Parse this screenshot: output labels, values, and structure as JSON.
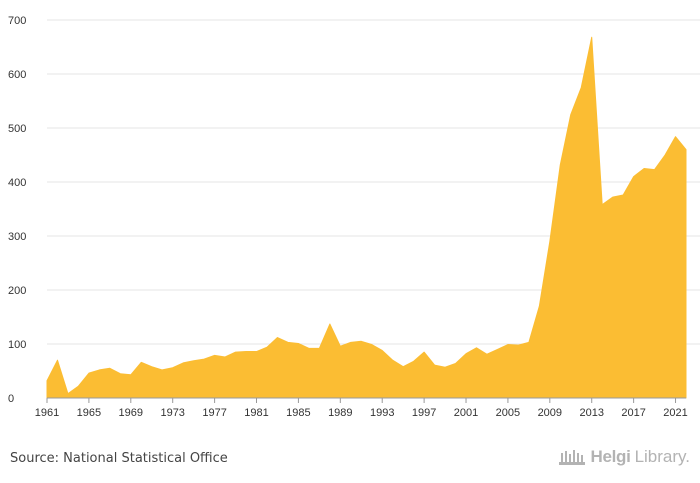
{
  "chart_data": {
    "type": "area",
    "title": "",
    "xlabel": "",
    "ylabel": "",
    "ylim": [
      0,
      700
    ],
    "yticks": [
      0,
      100,
      200,
      300,
      400,
      500,
      600,
      700
    ],
    "xtick_labels": [
      "1961",
      "1965",
      "1969",
      "1973",
      "1977",
      "1981",
      "1985",
      "1989",
      "1993",
      "1997",
      "2001",
      "2005",
      "2009",
      "2013",
      "2017",
      "2021"
    ],
    "grid": "horizontal",
    "color": "#fbbd33",
    "series": [
      {
        "x": [
          1961,
          1962,
          1963,
          1964,
          1965,
          1966,
          1967,
          1968,
          1969,
          1970,
          1971,
          1972,
          1973,
          1974,
          1975,
          1976,
          1977,
          1978,
          1979,
          1980,
          1981,
          1982,
          1983,
          1984,
          1985,
          1986,
          1987,
          1988,
          1989,
          1990,
          1991,
          1992,
          1993,
          1994,
          1995,
          1996,
          1997,
          1998,
          1999,
          2000,
          2001,
          2002,
          2003,
          2004,
          2005,
          2006,
          2007,
          2008,
          2009,
          2010,
          2011,
          2012,
          2013,
          2014,
          2015,
          2016,
          2017,
          2018,
          2019,
          2020,
          2021,
          2022
        ],
        "values": [
          32,
          70,
          8,
          22,
          46,
          52,
          55,
          45,
          43,
          66,
          58,
          52,
          56,
          65,
          69,
          72,
          79,
          76,
          85,
          86,
          86,
          94,
          112,
          103,
          101,
          92,
          92,
          137,
          96,
          103,
          105,
          99,
          88,
          70,
          58,
          68,
          85,
          61,
          57,
          64,
          82,
          93,
          81,
          90,
          99,
          98,
          103,
          170,
          290,
          432,
          525,
          575,
          668,
          358,
          372,
          376,
          410,
          425,
          423,
          450,
          484,
          460
        ]
      }
    ]
  },
  "footer": {
    "source": "Source: National Statistical Office",
    "brand_name": "Helgi",
    "brand_suffix": "Library."
  }
}
